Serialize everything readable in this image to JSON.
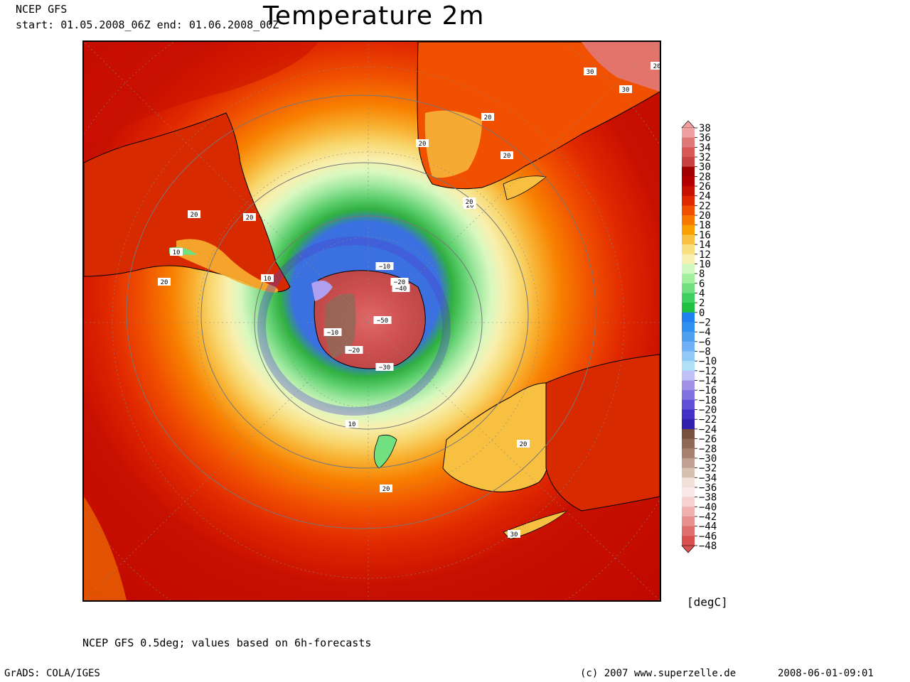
{
  "header": {
    "model": "NCEP GFS",
    "period": "start: 01.05.2008_06Z end: 01.06.2008_00Z",
    "title": "Temperature 2m"
  },
  "legend": {
    "unit": "[degC]",
    "levels": [
      38,
      36,
      34,
      32,
      30,
      28,
      26,
      24,
      22,
      20,
      18,
      16,
      14,
      12,
      10,
      8,
      6,
      4,
      2,
      0,
      -2,
      -4,
      -6,
      -8,
      -10,
      -12,
      -14,
      -16,
      -18,
      -20,
      -22,
      -24,
      -26,
      -28,
      -30,
      -32,
      -34,
      -36,
      -38,
      -40,
      -42,
      -44,
      -46,
      -48
    ],
    "colors": [
      "#f0a0a0",
      "#e07878",
      "#d85858",
      "#c84040",
      "#a00000",
      "#b40000",
      "#c81000",
      "#e02800",
      "#f05000",
      "#f87800",
      "#f8a000",
      "#f8c040",
      "#f8e080",
      "#f8f0b0",
      "#d0f8c0",
      "#a0f0a0",
      "#70e080",
      "#40d060",
      "#20c040",
      "#2080f0",
      "#3090f0",
      "#50a0f0",
      "#70b0f8",
      "#90c8f8",
      "#b0e0f8",
      "#c0c0f8",
      "#a090e8",
      "#8070e0",
      "#6050d8",
      "#4030c8",
      "#3020b0",
      "#785040",
      "#906858",
      "#a88070",
      "#c0a090",
      "#d8c0b0",
      "#f0e0d8",
      "#f8e8e8",
      "#f8d0d0",
      "#f0b0b0",
      "#e89090",
      "#e07070",
      "#d85050"
    ]
  },
  "map": {
    "contour_labels": [
      "20",
      "20",
      "20",
      "10",
      "10",
      "20",
      "-10",
      "-20",
      "-40",
      "-50",
      "-10",
      "-20",
      "-30",
      "20",
      "20",
      "20",
      "20",
      "10",
      "20",
      "20",
      "30",
      "30",
      "30",
      "20"
    ],
    "land_colors": [
      "#c81000",
      "#e02800"
    ]
  },
  "footer": {
    "note": "NCEP GFS 0.5deg; values based on 6h-forecasts",
    "software": "GrADS: COLA/IGES",
    "copyright": "(c) 2007 www.superzelle.de",
    "timestamp": "2008-06-01-09:01"
  }
}
